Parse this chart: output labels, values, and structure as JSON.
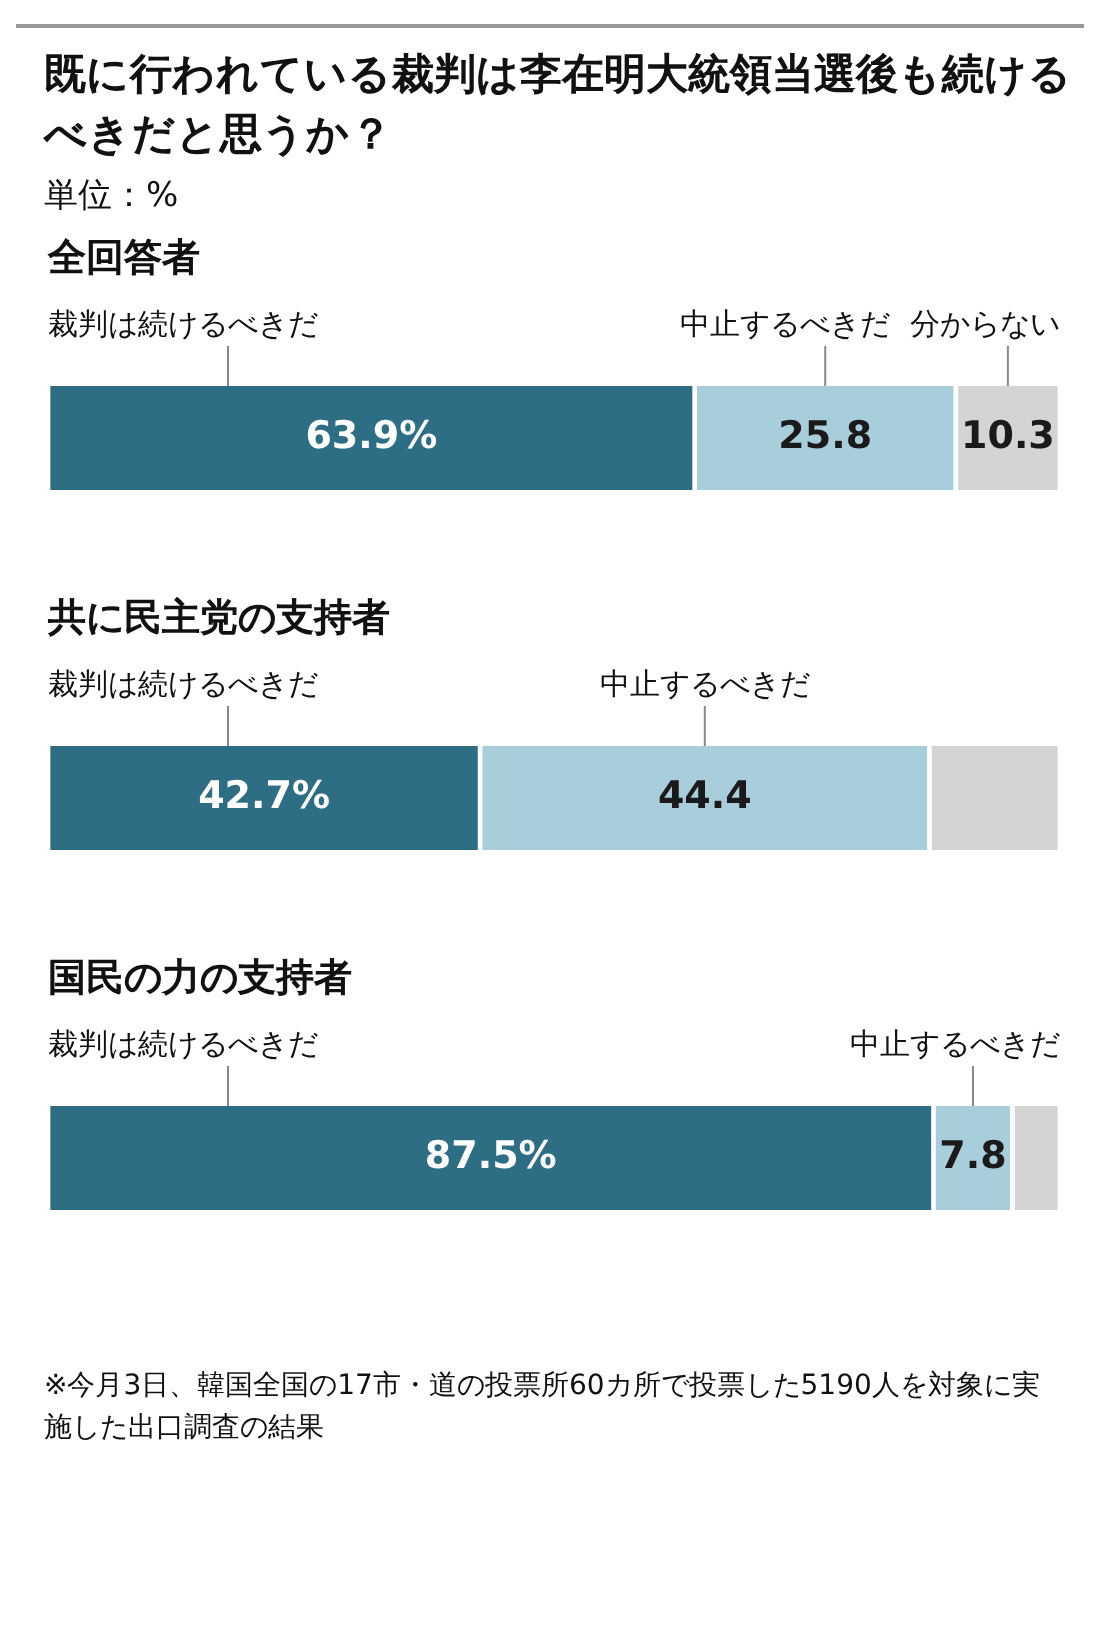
{
  "chart_data": {
    "type": "bar",
    "orientation": "horizontal",
    "stacked": true,
    "title": "既に行われている裁判は李在明大統領当選後も続けるべきだと思うか？",
    "subtitle": "単位：%",
    "categories": [
      "全回答者",
      "共に民主党の支持者",
      "国民の力の支持者"
    ],
    "series": [
      {
        "name": "裁判は続けるべきだ",
        "color": "#2e6e85",
        "values": [
          63.9,
          42.7,
          87.5
        ],
        "value_labels": [
          "63.9%",
          "42.7%",
          "87.5%"
        ]
      },
      {
        "name": "中止するべきだ",
        "color": "#a8cddb",
        "values": [
          25.8,
          44.4,
          7.8
        ],
        "value_labels": [
          "25.8",
          "44.4",
          "7.8"
        ]
      },
      {
        "name": "分からない",
        "color": "#d4d4d4",
        "values": [
          10.3,
          12.9,
          4.7
        ],
        "value_labels": [
          "10.3",
          null,
          null
        ]
      }
    ],
    "xlim": [
      0,
      100
    ],
    "tick_labels": false,
    "annotations": [
      "※今月3日、韓国全国の17市・道の投票所60カ所で投票した5190人を対象に実施した出口調査の結果"
    ]
  }
}
